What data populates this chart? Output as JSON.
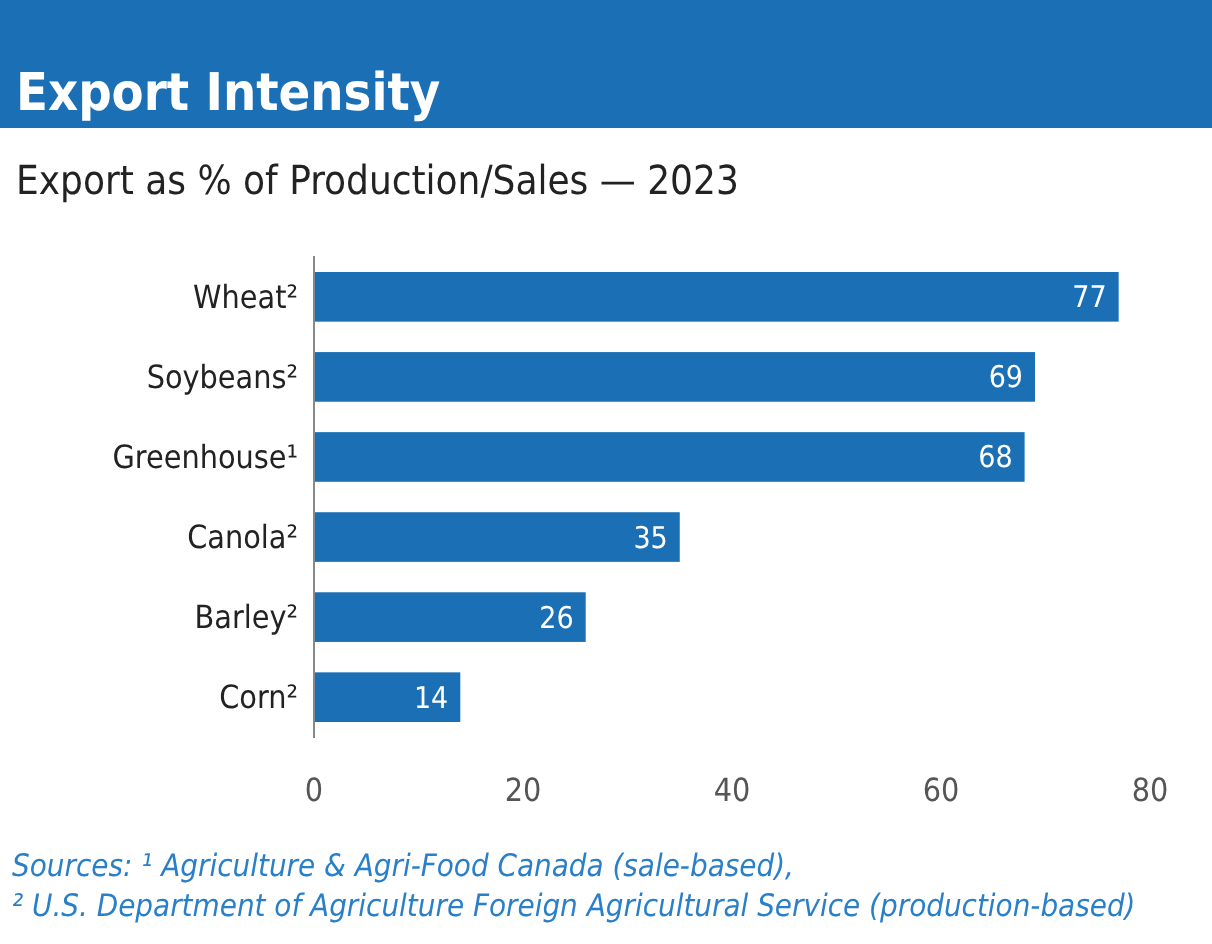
{
  "chart_data": {
    "type": "bar",
    "orientation": "horizontal",
    "title": "Export Intensity",
    "subtitle": "Export as % of Production/Sales — 2023",
    "categories": [
      "Wheat²",
      "Soybeans²",
      "Greenhouse¹",
      "Canola²",
      "Barley²",
      "Corn²"
    ],
    "values": [
      77,
      69,
      68,
      35,
      26,
      14
    ],
    "color": "#1a6fb5",
    "xlim": [
      0,
      80
    ],
    "xticks": [
      0,
      20,
      40,
      60,
      80
    ],
    "grid": false,
    "data_labels": true,
    "annotations": [
      "Sources: ¹ Agriculture & Agri-Food Canada (sale-based),",
      "² U.S. Department of Agriculture Foreign Agricultural Service (production-based)"
    ]
  }
}
